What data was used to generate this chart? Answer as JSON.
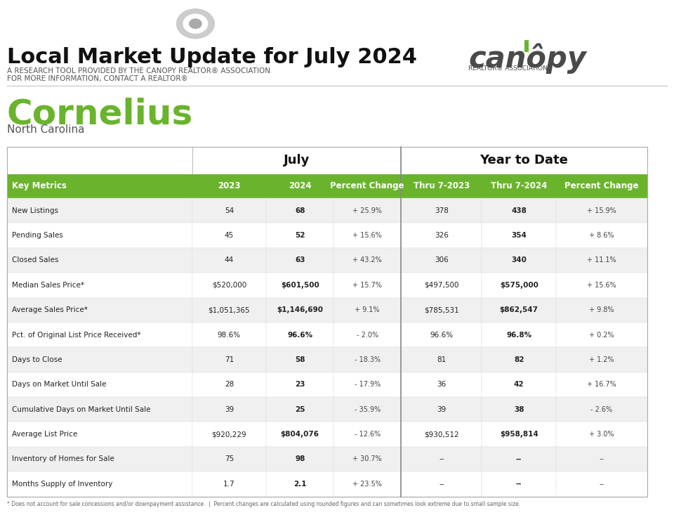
{
  "title_main": "Local Market Update for July 2024",
  "subtitle1": "A RESEARCH TOOL PROVIDED BY THE CANOPY REALTOR® ASSOCIATION",
  "subtitle2": "FOR MORE INFORMATION, CONTACT A REALTOR®",
  "city": "Cornelius",
  "state": "North Carolina",
  "col_header_texts": [
    "Key Metrics",
    "2023",
    "2024",
    "Percent Change",
    "Thru 7-2023",
    "Thru 7-2024",
    "Percent Change"
  ],
  "rows": [
    [
      "New Listings",
      "54",
      "68",
      "+ 25.9%",
      "378",
      "438",
      "+ 15.9%"
    ],
    [
      "Pending Sales",
      "45",
      "52",
      "+ 15.6%",
      "326",
      "354",
      "+ 8.6%"
    ],
    [
      "Closed Sales",
      "44",
      "63",
      "+ 43.2%",
      "306",
      "340",
      "+ 11.1%"
    ],
    [
      "Median Sales Price*",
      "$520,000",
      "$601,500",
      "+ 15.7%",
      "$497,500",
      "$575,000",
      "+ 15.6%"
    ],
    [
      "Average Sales Price*",
      "$1,051,365",
      "$1,146,690",
      "+ 9.1%",
      "$785,531",
      "$862,547",
      "+ 9.8%"
    ],
    [
      "Pct. of Original List Price Received*",
      "98.6%",
      "96.6%",
      "- 2.0%",
      "96.6%",
      "96.8%",
      "+ 0.2%"
    ],
    [
      "Days to Close",
      "71",
      "58",
      "- 18.3%",
      "81",
      "82",
      "+ 1.2%"
    ],
    [
      "Days on Market Until Sale",
      "28",
      "23",
      "- 17.9%",
      "36",
      "42",
      "+ 16.7%"
    ],
    [
      "Cumulative Days on Market Until Sale",
      "39",
      "25",
      "- 35.9%",
      "39",
      "38",
      "- 2.6%"
    ],
    [
      "Average List Price",
      "$920,229",
      "$804,076",
      "- 12.6%",
      "$930,512",
      "$958,814",
      "+ 3.0%"
    ],
    [
      "Inventory of Homes for Sale",
      "75",
      "98",
      "+ 30.7%",
      "--",
      "--",
      "--"
    ],
    [
      "Months Supply of Inventory",
      "1.7",
      "2.1",
      "+ 23.5%",
      "--",
      "--",
      "--"
    ]
  ],
  "footer": "* Does not account for sale concessions and/or downpayment assistance.  |  Percent changes are calculated using rounded figures and can sometimes look extreme due to small sample size.",
  "green_color": "#6ab42d",
  "dark_gray": "#4a4a4a",
  "header_bg": "#6ab42d",
  "row_alt_bg": "#f0f0f0",
  "row_bg": "#ffffff",
  "canopy_text": "canôpy",
  "canopy_sub": "REALTOR® ASSOCIATION"
}
